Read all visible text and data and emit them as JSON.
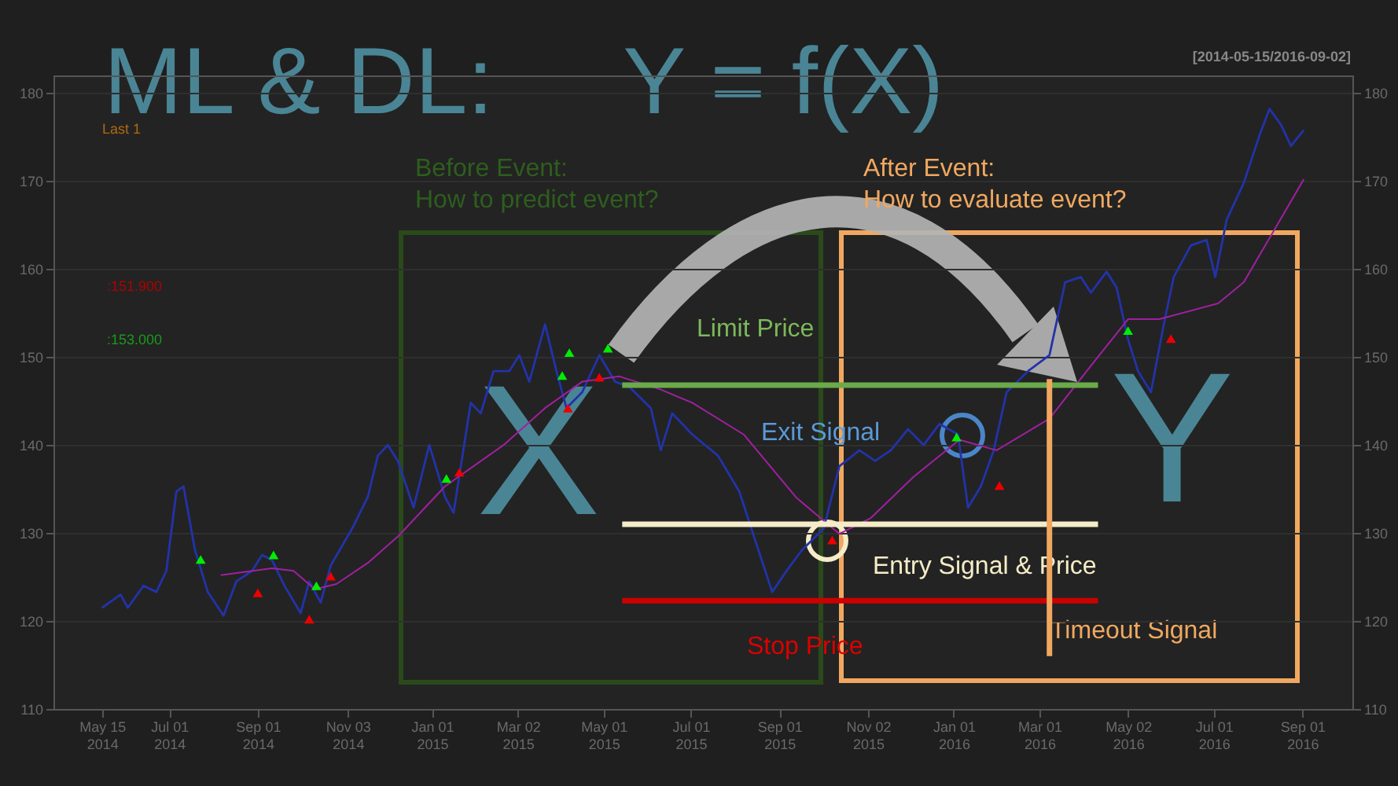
{
  "chart_data": {
    "type": "line",
    "title": "ML & DL:     Y = f(X)",
    "subtitle": "[2014-05-15/2016-09-02]",
    "xlim": [
      "2014-04-11",
      "2016-10-06"
    ],
    "xticks": [
      {
        "value": "2014-05-15",
        "label": "May 15\n2014"
      },
      {
        "value": "2014-07-01",
        "label": "Jul 01\n2014"
      },
      {
        "value": "2014-09-01",
        "label": "Sep 01\n2014"
      },
      {
        "value": "2014-11-03",
        "label": "Nov 03\n2014"
      },
      {
        "value": "2015-01-01",
        "label": "Jan 01\n2015"
      },
      {
        "value": "2015-03-02",
        "label": "Mar 02\n2015"
      },
      {
        "value": "2015-05-01",
        "label": "May 01\n2015"
      },
      {
        "value": "2015-07-01",
        "label": "Jul 01\n2015"
      },
      {
        "value": "2015-09-01",
        "label": "Sep 01\n2015"
      },
      {
        "value": "2015-11-02",
        "label": "Nov 02\n2015"
      },
      {
        "value": "2016-01-01",
        "label": "Jan 01\n2016"
      },
      {
        "value": "2016-03-01",
        "label": "Mar 01\n2016"
      },
      {
        "value": "2016-05-02",
        "label": "May 02\n2016"
      },
      {
        "value": "2016-07-01",
        "label": "Jul 01\n2016"
      },
      {
        "value": "2016-09-01",
        "label": "Sep 01\n2016"
      }
    ],
    "ylim": [
      110,
      182
    ],
    "yticks": [
      110,
      120,
      130,
      140,
      150,
      160,
      170,
      180
    ],
    "y2lim": [
      110,
      182
    ],
    "y2ticks": [
      110,
      120,
      130,
      140,
      150,
      160,
      170,
      180
    ],
    "grid": "y",
    "series": [
      {
        "color": "#2233aa",
        "marker": "none",
        "x": [
          "2014-05-15",
          "2014-05-28",
          "2014-06-02",
          "2014-06-13",
          "2014-06-22",
          "2014-06-29",
          "2014-07-06",
          "2014-07-11",
          "2014-07-19",
          "2014-07-28",
          "2014-08-08",
          "2014-08-17",
          "2014-08-28",
          "2014-09-04",
          "2014-09-11",
          "2014-09-20",
          "2014-10-01",
          "2014-10-07",
          "2014-10-15",
          "2014-10-22",
          "2014-11-06",
          "2014-11-17",
          "2014-11-24",
          "2014-12-01",
          "2014-12-08",
          "2014-12-19",
          "2014-12-30",
          "2015-01-10",
          "2015-01-16",
          "2015-01-28",
          "2015-02-04",
          "2015-02-13",
          "2015-02-24",
          "2015-03-03",
          "2015-03-10",
          "2015-03-21",
          "2015-03-29",
          "2015-04-05",
          "2015-04-16",
          "2015-04-28",
          "2015-05-09",
          "2015-05-19",
          "2015-06-03",
          "2015-06-10",
          "2015-06-18",
          "2015-06-25",
          "2015-07-02",
          "2015-07-20",
          "2015-08-04",
          "2015-08-16",
          "2015-08-27",
          "2015-09-06",
          "2015-09-17",
          "2015-10-02",
          "2015-10-13",
          "2015-10-27",
          "2015-11-07",
          "2015-11-18",
          "2015-11-30",
          "2015-12-11",
          "2015-12-22",
          "2016-01-04",
          "2016-01-11",
          "2016-01-20",
          "2016-01-29",
          "2016-02-07",
          "2016-02-22",
          "2016-03-08",
          "2016-03-19",
          "2016-03-30",
          "2016-04-06",
          "2016-04-17",
          "2016-04-24",
          "2016-05-02",
          "2016-05-09",
          "2016-05-18",
          "2016-05-27",
          "2016-06-03",
          "2016-06-15",
          "2016-06-26",
          "2016-07-02",
          "2016-07-10",
          "2016-07-22",
          "2016-08-02",
          "2016-08-09",
          "2016-08-17",
          "2016-08-24",
          "2016-09-02"
        ],
        "values": [
          121.5,
          123,
          121.5,
          124,
          123.3,
          125.7,
          134.7,
          135.3,
          128.1,
          123.3,
          120.6,
          124.5,
          125.7,
          127.5,
          126.9,
          123.9,
          120.9,
          124.5,
          122.1,
          126.3,
          130.5,
          134.1,
          138.8,
          140,
          138.2,
          132.9,
          140,
          134.1,
          132.3,
          144.8,
          143.6,
          148.4,
          148.4,
          150.2,
          147.2,
          153.7,
          148.4,
          144.2,
          146,
          150.2,
          147.2,
          146.6,
          144.2,
          139.4,
          143.6,
          142.4,
          141.2,
          138.8,
          134.7,
          128.7,
          123.3,
          125.7,
          128.1,
          130.5,
          137.6,
          139.4,
          138.2,
          139.4,
          141.8,
          140,
          142.4,
          141.2,
          132.9,
          135.3,
          139.4,
          146,
          148.4,
          150.2,
          158.5,
          159.1,
          157.3,
          159.7,
          157.9,
          152,
          148.4,
          146,
          153.7,
          159.1,
          162.7,
          163.3,
          159.1,
          165.6,
          169.8,
          175.2,
          178.2,
          176.4,
          174,
          175.8
        ]
      },
      {
        "color": "#a020a0",
        "marker": "none",
        "x": [
          "2014-08-06",
          "2014-09-11",
          "2014-09-26",
          "2014-10-11",
          "2014-10-26",
          "2014-11-17",
          "2014-12-08",
          "2015-01-10",
          "2015-02-20",
          "2015-03-21",
          "2015-04-16",
          "2015-05-12",
          "2015-06-10",
          "2015-07-02",
          "2015-08-07",
          "2015-09-13",
          "2015-10-13",
          "2015-11-04",
          "2015-12-04",
          "2016-01-05",
          "2016-01-31",
          "2016-03-08",
          "2016-04-06",
          "2016-05-02",
          "2016-05-24",
          "2016-07-04",
          "2016-07-22",
          "2016-09-02"
        ],
        "values": [
          125.2,
          126,
          125.7,
          123.6,
          124.2,
          126.6,
          129.6,
          135.3,
          140,
          144.2,
          147.2,
          147.8,
          146.3,
          144.8,
          141.2,
          134,
          129.9,
          131.7,
          136.4,
          140.6,
          139.4,
          143,
          149,
          154.3,
          154.3,
          156.1,
          158.5,
          170.2
        ]
      },
      {
        "type": "scatter",
        "color": "#00ee00",
        "marker": "triangle",
        "x": [
          "2014-07-23",
          "2014-09-12",
          "2014-10-12",
          "2015-01-11",
          "2015-04-02",
          "2015-04-07",
          "2015-05-04",
          "2016-01-03",
          "2016-05-02"
        ],
        "values": [
          127,
          127.5,
          124,
          136.2,
          147.9,
          150.5,
          151,
          140.9,
          153
        ]
      },
      {
        "type": "scatter",
        "color": "#ee0000",
        "marker": "triangle",
        "x": [
          "2014-09-01",
          "2014-10-07",
          "2014-10-22",
          "2015-01-20",
          "2015-04-06",
          "2015-04-28",
          "2015-10-08",
          "2016-02-02",
          "2016-06-01"
        ],
        "values": [
          123.2,
          120.2,
          125.1,
          136.9,
          144.2,
          147.7,
          129.2,
          135.4,
          152.1
        ]
      },
      {
        "color": "#6aaa4a",
        "marker": "none",
        "x": [
          "2015-05-14",
          "2016-04-11"
        ],
        "values": [
          146.8,
          146.8
        ]
      },
      {
        "color": "#f5ecc8",
        "marker": "none",
        "x": [
          "2015-05-14",
          "2016-04-11"
        ],
        "values": [
          131,
          131
        ]
      },
      {
        "color": "#cc0000",
        "marker": "none",
        "x": [
          "2015-05-14",
          "2016-04-11"
        ],
        "values": [
          122.3,
          122.3
        ]
      },
      {
        "color": "#f0a860",
        "marker": "none",
        "x": [
          "2016-03-08",
          "2016-03-08"
        ],
        "values": [
          147.5,
          116
        ]
      }
    ],
    "annotations": [
      "Last 1",
      ":151.900",
      ":153.000",
      "Before Event:\nHow to predict event?",
      "After Event:\nHow to evaluate event?",
      "X",
      "Y",
      "Limit Price",
      "Exit Signal",
      "Entry Signal & Price",
      "Stop Price",
      "Timeout Signal"
    ]
  }
}
